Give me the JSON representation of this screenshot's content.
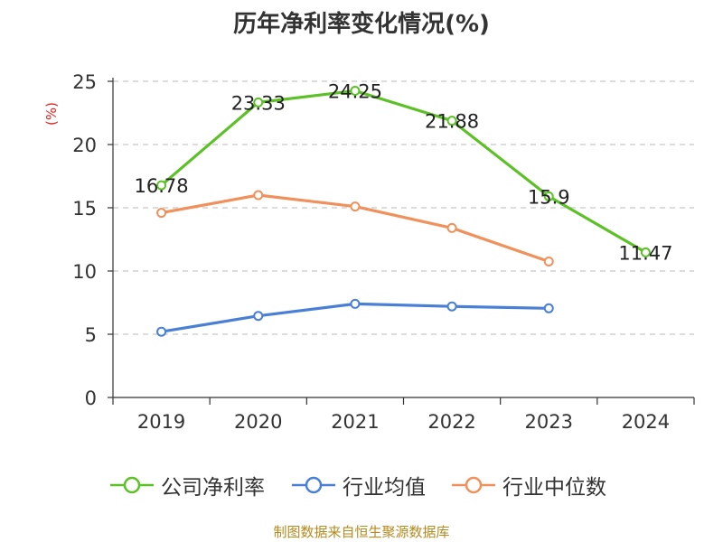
{
  "chart_data": {
    "type": "line",
    "title": "历年净利率变化情况(%)",
    "ylabel": "(%)",
    "xlabel": "",
    "categories": [
      "2019",
      "2020",
      "2021",
      "2022",
      "2023",
      "2024"
    ],
    "ylim": [
      0,
      25
    ],
    "yticks": [
      0,
      5,
      10,
      15,
      20,
      25
    ],
    "grid": true,
    "legend_position": "bottom",
    "series": [
      {
        "name": "公司净利率",
        "color": "#5cc126",
        "values": [
          16.78,
          23.33,
          24.25,
          21.88,
          15.9,
          11.47
        ],
        "labels": [
          "16.78",
          "23.33",
          "24.25",
          "21.88",
          "15.9",
          "11.47"
        ]
      },
      {
        "name": "行业均值",
        "color": "#4a7fd6",
        "values": [
          5.2,
          6.45,
          7.4,
          7.2,
          7.05,
          null
        ]
      },
      {
        "name": "行业中位数",
        "color": "#f0905a",
        "values": [
          14.6,
          16.0,
          15.1,
          13.4,
          10.75,
          null
        ]
      }
    ]
  },
  "footer": "制图数据来自恒生聚源数据库"
}
